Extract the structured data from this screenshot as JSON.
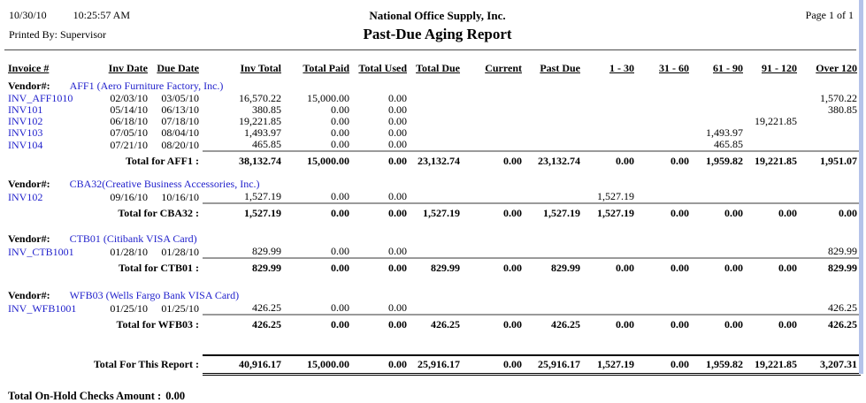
{
  "header": {
    "date": "10/30/10",
    "time": "10:25:57 AM",
    "printed_by": "Printed By: Supervisor",
    "company": "National Office Supply, Inc.",
    "title": "Past-Due Aging Report",
    "page": "Page 1 of 1"
  },
  "colors": {
    "link_blue": "#2222cc",
    "edge_strip": "#b5c3e9",
    "total_line_gray": "#9a9a9a"
  },
  "table": {
    "columns": [
      "Invoice #",
      "Inv Date",
      "Due Date",
      "Inv Total",
      "Total Paid",
      "Total Used",
      "Total Due",
      "Current",
      "Past Due",
      "1 - 30",
      "31 - 60",
      "61 - 90",
      "91 - 120",
      "Over 120"
    ],
    "vendor_label": "Vendor#:",
    "sections": [
      {
        "vendor_name": "AFF1 (Aero Furniture Factory, Inc.)",
        "rows": [
          [
            "INV_AFF1010",
            "02/03/10",
            "03/05/10",
            "16,570.22",
            "15,000.00",
            "0.00",
            "",
            "",
            "",
            "",
            "",
            "",
            "",
            "1,570.22"
          ],
          [
            "INV101",
            "05/14/10",
            "06/13/10",
            "380.85",
            "0.00",
            "0.00",
            "",
            "",
            "",
            "",
            "",
            "",
            "",
            "380.85"
          ],
          [
            "INV102",
            "06/18/10",
            "07/18/10",
            "19,221.85",
            "0.00",
            "0.00",
            "",
            "",
            "",
            "",
            "",
            "",
            "19,221.85",
            ""
          ],
          [
            "INV103",
            "07/05/10",
            "08/04/10",
            "1,493.97",
            "0.00",
            "0.00",
            "",
            "",
            "",
            "",
            "",
            "1,493.97",
            "",
            ""
          ],
          [
            "INV104",
            "07/21/10",
            "08/20/10",
            "465.85",
            "0.00",
            "0.00",
            "",
            "",
            "",
            "",
            "",
            "465.85",
            "",
            ""
          ]
        ],
        "total_label": "Total for AFF1 :",
        "totals": [
          "38,132.74",
          "15,000.00",
          "0.00",
          "23,132.74",
          "0.00",
          "23,132.74",
          "0.00",
          "0.00",
          "1,959.82",
          "19,221.85",
          "1,951.07"
        ]
      },
      {
        "vendor_name": "CBA32(Creative Business Accessories, Inc.)",
        "rows": [
          [
            "INV102",
            "09/16/10",
            "10/16/10",
            "1,527.19",
            "0.00",
            "0.00",
            "",
            "",
            "",
            "1,527.19",
            "",
            "",
            "",
            ""
          ]
        ],
        "total_label": "Total for CBA32 :",
        "totals": [
          "1,527.19",
          "0.00",
          "0.00",
          "1,527.19",
          "0.00",
          "1,527.19",
          "1,527.19",
          "0.00",
          "0.00",
          "0.00",
          "0.00"
        ]
      },
      {
        "vendor_name": "CTB01 (Citibank VISA Card)",
        "rows": [
          [
            "INV_CTB1001",
            "01/28/10",
            "01/28/10",
            "829.99",
            "0.00",
            "0.00",
            "",
            "",
            "",
            "",
            "",
            "",
            "",
            "829.99"
          ]
        ],
        "total_label": "Total for CTB01 :",
        "totals": [
          "829.99",
          "0.00",
          "0.00",
          "829.99",
          "0.00",
          "829.99",
          "0.00",
          "0.00",
          "0.00",
          "0.00",
          "829.99"
        ]
      },
      {
        "vendor_name": "WFB03 (Wells Fargo Bank VISA Card)",
        "rows": [
          [
            "INV_WFB1001",
            "01/25/10",
            "01/25/10",
            "426.25",
            "0.00",
            "0.00",
            "",
            "",
            "",
            "",
            "",
            "",
            "",
            "426.25"
          ]
        ],
        "total_label": "Total for WFB03 :",
        "totals": [
          "426.25",
          "0.00",
          "0.00",
          "426.25",
          "0.00",
          "426.25",
          "0.00",
          "0.00",
          "0.00",
          "0.00",
          "426.25"
        ]
      }
    ],
    "report_total_label": "Total For This Report :",
    "report_totals": [
      "40,916.17",
      "15,000.00",
      "0.00",
      "25,916.17",
      "0.00",
      "25,916.17",
      "1,527.19",
      "0.00",
      "1,959.82",
      "19,221.85",
      "3,207.31"
    ]
  },
  "footer": {
    "on_hold_label": "Total On-Hold Checks Amount :",
    "on_hold_value": "0.00"
  }
}
